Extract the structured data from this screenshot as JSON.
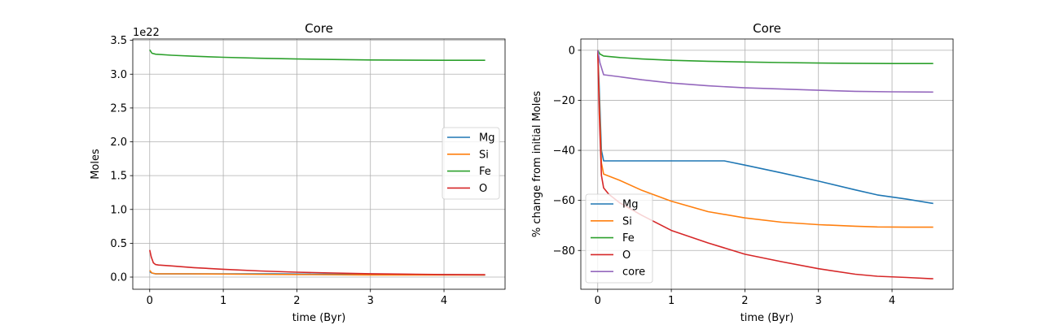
{
  "chart_data": [
    {
      "type": "line",
      "title": "Core",
      "xlabel": "time (Byr)",
      "ylabel": "Moles",
      "offset_text": "1e22",
      "xlim": [
        -0.23,
        4.83
      ],
      "ylim": [
        -0.18,
        3.52
      ],
      "xticks": [
        0,
        1,
        2,
        3,
        4
      ],
      "yticks": [
        0.0,
        0.5,
        1.0,
        1.5,
        2.0,
        2.5,
        3.0,
        3.5
      ],
      "ytick_labels": [
        "0.0",
        "0.5",
        "1.0",
        "1.5",
        "2.0",
        "2.5",
        "3.0",
        "3.5"
      ],
      "grid": true,
      "legend": "center-right",
      "series": [
        {
          "name": "Mg",
          "color": "#1f77b4",
          "x": [
            0,
            0.03,
            0.08,
            0.5,
            1.0,
            1.7,
            2.0,
            3.0,
            4.0,
            4.56
          ],
          "y": [
            0.08,
            0.06,
            0.047,
            0.047,
            0.047,
            0.047,
            0.045,
            0.04,
            0.035,
            0.032
          ]
        },
        {
          "name": "Si",
          "color": "#ff7f0e",
          "x": [
            0,
            0.03,
            0.08,
            0.5,
            1.0,
            2.0,
            3.0,
            4.0,
            4.56
          ],
          "y": [
            0.1,
            0.06,
            0.05,
            0.048,
            0.045,
            0.037,
            0.032,
            0.03,
            0.03
          ]
        },
        {
          "name": "Fe",
          "color": "#2ca02c",
          "x": [
            0,
            0.03,
            0.08,
            0.3,
            0.6,
            1.0,
            1.5,
            2.0,
            3.0,
            4.0,
            4.56
          ],
          "y": [
            3.36,
            3.31,
            3.295,
            3.28,
            3.265,
            3.25,
            3.235,
            3.225,
            3.21,
            3.205,
            3.205
          ]
        },
        {
          "name": "O",
          "color": "#d62728",
          "x": [
            0,
            0.02,
            0.05,
            0.08,
            0.12,
            0.3,
            0.6,
            1.0,
            1.5,
            2.0,
            2.5,
            3.0,
            3.5,
            4.0,
            4.56
          ],
          "y": [
            0.4,
            0.3,
            0.21,
            0.185,
            0.178,
            0.165,
            0.14,
            0.115,
            0.09,
            0.072,
            0.06,
            0.05,
            0.043,
            0.038,
            0.035
          ]
        }
      ]
    },
    {
      "type": "line",
      "title": "Core",
      "xlabel": "time (Byr)",
      "ylabel": "% change from initial Moles",
      "xlim": [
        -0.23,
        4.83
      ],
      "ylim": [
        -95.5,
        4.5
      ],
      "xticks": [
        0,
        1,
        2,
        3,
        4
      ],
      "yticks": [
        0,
        -20,
        -40,
        -60,
        -80
      ],
      "ytick_labels": [
        "0",
        "−20",
        "−40",
        "−60",
        "−80"
      ],
      "grid": true,
      "legend": "lower-left",
      "series": [
        {
          "name": "Mg",
          "color": "#1f77b4",
          "x": [
            0,
            0.02,
            0.05,
            0.08,
            0.5,
            1.0,
            1.72,
            2.0,
            2.5,
            3.0,
            3.5,
            3.8,
            4.2,
            4.56
          ],
          "y": [
            0,
            -15,
            -40,
            -44.2,
            -44.2,
            -44.2,
            -44.2,
            -45.9,
            -49.0,
            -52.3,
            -55.8,
            -57.8,
            -59.5,
            -61.2
          ]
        },
        {
          "name": "Si",
          "color": "#ff7f0e",
          "x": [
            0,
            0.02,
            0.05,
            0.08,
            0.3,
            0.6,
            1.0,
            1.5,
            2.0,
            2.5,
            3.0,
            3.5,
            3.8,
            4.2,
            4.56
          ],
          "y": [
            0,
            -20,
            -45,
            -49.5,
            -52,
            -56,
            -60.3,
            -64.5,
            -67,
            -68.7,
            -69.7,
            -70.3,
            -70.6,
            -70.7,
            -70.7
          ]
        },
        {
          "name": "Fe",
          "color": "#2ca02c",
          "x": [
            0,
            0.03,
            0.08,
            0.3,
            0.6,
            1.0,
            1.5,
            2.0,
            2.5,
            3.0,
            3.5,
            4.0,
            4.56
          ],
          "y": [
            0,
            -1.5,
            -2.3,
            -2.9,
            -3.5,
            -4.0,
            -4.4,
            -4.7,
            -4.9,
            -5.1,
            -5.2,
            -5.3,
            -5.3
          ]
        },
        {
          "name": "O",
          "color": "#d62728",
          "x": [
            0,
            0.02,
            0.05,
            0.08,
            0.15,
            0.3,
            0.6,
            1.0,
            1.5,
            2.0,
            2.5,
            3.0,
            3.5,
            3.8,
            4.2,
            4.56
          ],
          "y": [
            0,
            -25,
            -50,
            -55,
            -57.5,
            -61,
            -66,
            -72,
            -77,
            -81.5,
            -84.5,
            -87.3,
            -89.5,
            -90.3,
            -90.8,
            -91.3
          ]
        },
        {
          "name": "core",
          "color": "#9467bd",
          "x": [
            0,
            0.03,
            0.08,
            0.3,
            0.6,
            1.0,
            1.5,
            2.0,
            2.5,
            3.0,
            3.5,
            4.0,
            4.56
          ],
          "y": [
            0,
            -5,
            -9.8,
            -10.6,
            -11.8,
            -13.1,
            -14.2,
            -15.0,
            -15.5,
            -16.0,
            -16.4,
            -16.6,
            -16.7
          ]
        }
      ]
    }
  ]
}
